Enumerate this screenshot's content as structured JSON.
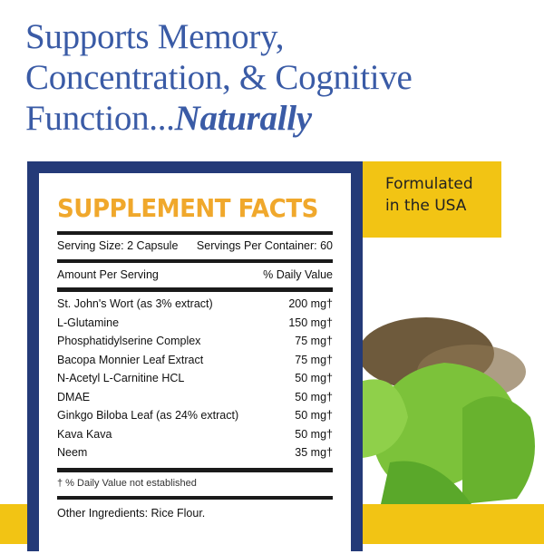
{
  "headline": {
    "line1": "Supports Memory,",
    "line2": "Concentration, & Cognitive",
    "line3": "Function...",
    "line3_emph": "Naturally"
  },
  "badge": {
    "line1": "Formulated",
    "line2": "in the USA"
  },
  "facts": {
    "title": "SUPPLEMENT FACTS",
    "serving_size": "Serving Size: 2 Capsule",
    "servings_per_container": "Servings Per Container: 60",
    "amount_header": "Amount Per Serving",
    "dv_header": "% Daily Value",
    "ingredients": [
      {
        "name": "St. John's Wort (as 3% extract)",
        "amount": "200 mg†"
      },
      {
        "name": "L-Glutamine",
        "amount": "150 mg†"
      },
      {
        "name": "Phosphatidylserine Complex",
        "amount": "75 mg†"
      },
      {
        "name": "Bacopa Monnier Leaf Extract",
        "amount": "75 mg†"
      },
      {
        "name": "N-Acetyl L-Carnitine HCL",
        "amount": "50 mg†"
      },
      {
        "name": "DMAE",
        "amount": "50 mg†"
      },
      {
        "name": "Ginkgo Biloba Leaf (as 24% extract)",
        "amount": "50 mg†"
      },
      {
        "name": "Kava Kava",
        "amount": "50 mg†"
      },
      {
        "name": "Neem",
        "amount": "35 mg†"
      }
    ],
    "footnote": "† % Daily Value not established",
    "other": "Other Ingredients: Rice Flour."
  },
  "colors": {
    "headline": "#3a5ba6",
    "frame": "#243a78",
    "accent_yellow": "#f2c414",
    "title_orange": "#f0a82c"
  }
}
